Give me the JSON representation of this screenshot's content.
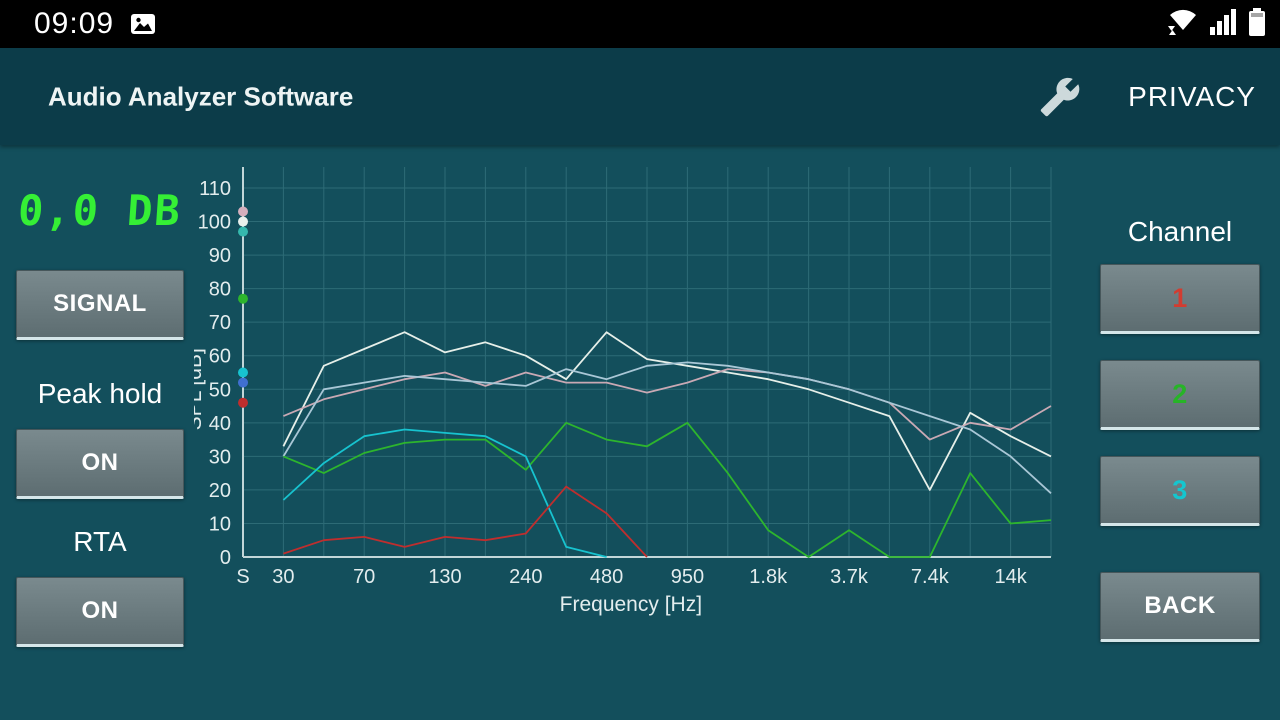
{
  "status_bar": {
    "time": "09:09",
    "left_icons": [
      "image-icon"
    ],
    "right_icons": [
      "wifi-icon",
      "signal-strength-icon",
      "battery-icon"
    ]
  },
  "header": {
    "title": "Audio Analyzer Software",
    "privacy_label": "PRIVACY",
    "settings_icon": "wrench-icon"
  },
  "left_panel": {
    "db_readout": "0,0 DB",
    "readout_color": "#35ef35",
    "signal_button": "SIGNAL",
    "peak_hold_label": "Peak hold",
    "peak_hold_state": "ON",
    "rta_label": "RTA",
    "rta_state": "ON"
  },
  "right_panel": {
    "channel_label": "Channel",
    "channels": [
      {
        "label": "1",
        "color": "#d23c30"
      },
      {
        "label": "2",
        "color": "#27b427"
      },
      {
        "label": "3",
        "color": "#14c6cf"
      }
    ],
    "back_button": "BACK"
  },
  "chart_data": {
    "type": "line",
    "title": "",
    "xlabel": "Frequency [Hz]",
    "ylabel": "SPL [dB]",
    "ylim": [
      0,
      110
    ],
    "grid": true,
    "grid_color": "#2d6b76",
    "axis_color": "#c2d6d8",
    "text_color": "#e3edee",
    "y_ticks": [
      0,
      10,
      20,
      30,
      40,
      50,
      60,
      70,
      80,
      90,
      100,
      110
    ],
    "x_ticks": [
      {
        "pos": 0,
        "label": "S"
      },
      {
        "pos": 1,
        "label": "30"
      },
      {
        "pos": 3,
        "label": "70"
      },
      {
        "pos": 5,
        "label": "130"
      },
      {
        "pos": 7,
        "label": "240"
      },
      {
        "pos": 9,
        "label": "480"
      },
      {
        "pos": 11,
        "label": "950"
      },
      {
        "pos": 13,
        "label": "1.8k"
      },
      {
        "pos": 15,
        "label": "3.7k"
      },
      {
        "pos": 17,
        "label": "7.4k"
      },
      {
        "pos": 19,
        "label": "14k"
      }
    ],
    "series": [
      {
        "name": "trace-white",
        "color": "#e6efe9",
        "values": [
          33,
          57,
          62,
          67,
          61,
          64,
          60,
          53,
          67,
          59,
          57,
          55,
          53,
          50,
          46,
          42,
          20,
          43,
          36,
          30
        ]
      },
      {
        "name": "trace-rose",
        "color": "#c9a9b4",
        "values": [
          42,
          47,
          50,
          53,
          55,
          51,
          55,
          52,
          52,
          49,
          52,
          56,
          55,
          53,
          50,
          46,
          35,
          40,
          38,
          45
        ]
      },
      {
        "name": "trace-powder",
        "color": "#a9c7d6",
        "values": [
          30,
          50,
          52,
          54,
          53,
          52,
          51,
          56,
          53,
          57,
          58,
          57,
          55,
          53,
          50,
          46,
          42,
          38,
          30,
          19
        ]
      },
      {
        "name": "trace-green",
        "color": "#2db52d",
        "values": [
          30,
          25,
          31,
          34,
          35,
          35,
          26,
          40,
          35,
          33,
          40,
          25,
          8,
          0,
          8,
          0,
          0,
          25,
          10,
          11
        ]
      },
      {
        "name": "trace-cyan",
        "color": "#17c3cf",
        "values": [
          17,
          28,
          36,
          38,
          37,
          36,
          30,
          3,
          0,
          null,
          null,
          null,
          null,
          null,
          null,
          null,
          null,
          null,
          null,
          null
        ]
      },
      {
        "name": "trace-red",
        "color": "#bf2e2e",
        "values": [
          1,
          5,
          6,
          3,
          6,
          5,
          7,
          21,
          13,
          0,
          null,
          null,
          null,
          null,
          null,
          null,
          null,
          null,
          null,
          null
        ]
      }
    ],
    "peak_markers": [
      {
        "color": "#d4aebc",
        "value": 103
      },
      {
        "color": "#e8f0ec",
        "value": 100
      },
      {
        "color": "#35b8ad",
        "value": 97
      },
      {
        "color": "#2db52d",
        "value": 77
      },
      {
        "color": "#17c3cf",
        "value": 55
      },
      {
        "color": "#3f6fd0",
        "value": 52
      },
      {
        "color": "#bf2e2e",
        "value": 46
      }
    ]
  },
  "colors": {
    "background": "#134f5c",
    "header_background": "#0c3c49",
    "status_bar_background": "#000000",
    "button_face": "#6b7b7f",
    "button_underline": "#d5e6e9"
  }
}
